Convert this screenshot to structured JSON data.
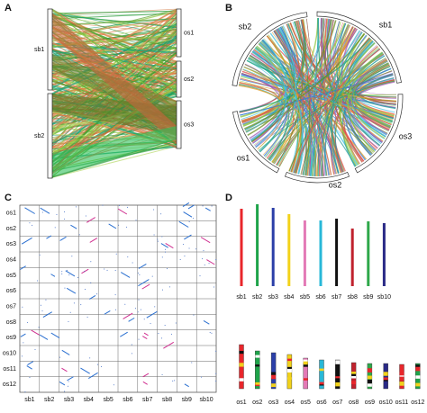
{
  "panel_a": {
    "label": "A",
    "left": [
      "sb1",
      "sb2"
    ],
    "right": [
      "os1",
      "os2",
      "os3"
    ]
  },
  "panel_b": {
    "label": "B",
    "segments": [
      "sb2",
      "sb1",
      "os3",
      "os2",
      "os1"
    ]
  },
  "panel_c": {
    "label": "C",
    "rows": [
      "os1",
      "os2",
      "os3",
      "os4",
      "os5",
      "os6",
      "os7",
      "os8",
      "os9",
      "os10",
      "os11",
      "os12"
    ],
    "columns": [
      "sb1",
      "sb2",
      "sb3",
      "sb4",
      "sb5",
      "sb6",
      "sb7",
      "sb8",
      "sb9",
      "sb10"
    ]
  },
  "panel_d": {
    "label": "D",
    "top": {
      "names": [
        "sb1",
        "sb2",
        "sb3",
        "sb4",
        "sb5",
        "sb6",
        "sb7",
        "sb8",
        "sb9",
        "sb10"
      ],
      "colors": [
        "#e8262b",
        "#1fa34a",
        "#2b3fa8",
        "#f2d21b",
        "#e37ab6",
        "#28b8d8",
        "#111111",
        "#c0222e",
        "#2ea84a",
        "#2a2a86"
      ],
      "lengths": [
        86,
        91,
        87,
        80,
        73,
        73,
        75,
        64,
        72,
        70
      ]
    },
    "bottom": {
      "names": [
        "os1",
        "os2",
        "os3",
        "os4",
        "os5",
        "os6",
        "os7",
        "os8",
        "os9",
        "os10",
        "os11",
        "os12"
      ],
      "lengths": [
        49,
        42,
        40,
        38,
        34,
        32,
        32,
        29,
        28,
        28,
        27,
        28
      ]
    }
  }
}
